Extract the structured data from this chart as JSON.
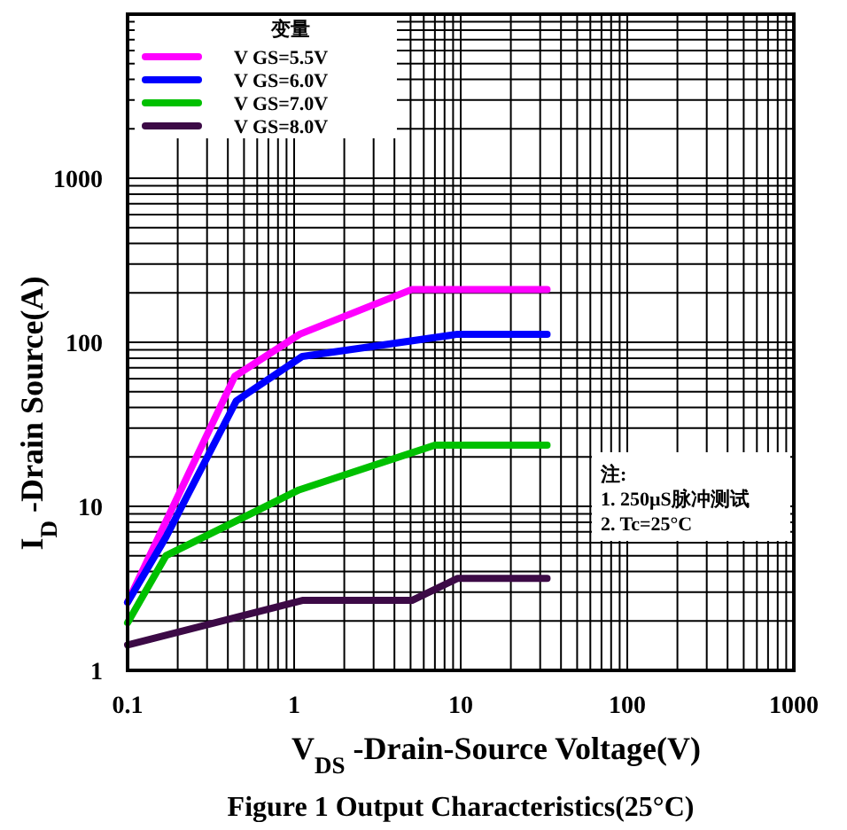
{
  "chart_data": {
    "type": "line",
    "title": "Figure 1 Output Characteristics(25°C)",
    "xlabel": "V$_{DS}$ -Drain-Source Voltage(V)",
    "ylabel": "I$_{D}$ -Drain Source(A)",
    "legend_title": "变量",
    "legend": "top left",
    "log": "xy",
    "grid": true,
    "xlim": [
      0.1,
      1000
    ],
    "ylim": [
      1,
      10000
    ],
    "xticks": [
      0.1,
      1,
      10,
      100,
      1000
    ],
    "yticks": [
      1,
      10,
      100,
      1000
    ],
    "series": [
      {
        "name": "V GS=5.5V",
        "color": "#ff00ff",
        "x": [
          0.1,
          0.44,
          1.08,
          5.1,
          33
        ],
        "values": [
          2.6,
          62,
          112,
          210,
          210
        ]
      },
      {
        "name": "V GS=6.0V",
        "color": "#0000ff",
        "x": [
          0.1,
          0.17,
          0.45,
          1.12,
          9.6,
          33
        ],
        "values": [
          2.6,
          6.5,
          44,
          82,
          112,
          112
        ]
      },
      {
        "name": "V GS=7.0V",
        "color": "#00c000",
        "x": [
          0.1,
          0.17,
          1.07,
          7,
          33
        ],
        "values": [
          1.95,
          5,
          12.6,
          23.6,
          23.6
        ]
      },
      {
        "name": "V GS=8.0V",
        "color": "#3c0a46",
        "x": [
          0.1,
          1.12,
          5.1,
          9.6,
          33
        ],
        "values": [
          1.43,
          2.67,
          2.67,
          3.64,
          3.64
        ]
      }
    ],
    "annotations": [
      "注:",
      "1. 250μS脉冲测试",
      "2. Tc=25°C"
    ]
  }
}
